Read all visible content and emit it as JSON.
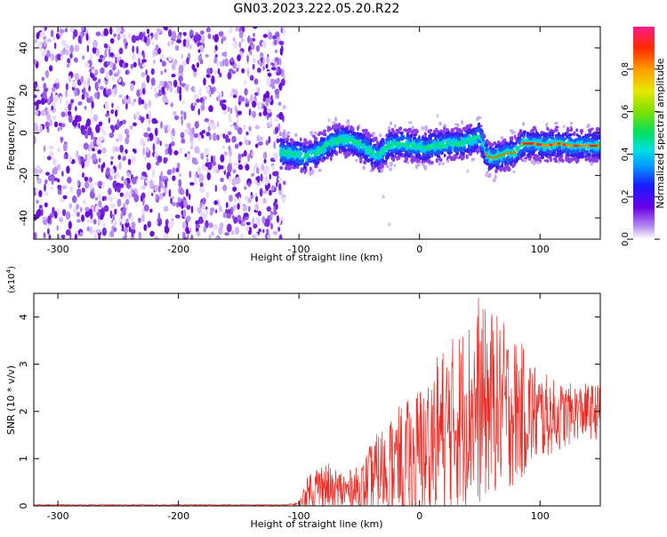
{
  "figure_title": "GN03.2023.222.05.20.R22",
  "colors": {
    "noise": "#7a2bdc",
    "signal_low": "#2a2ff0",
    "snr_line": "#e8302a"
  },
  "chart_data": [
    {
      "type": "heatmap",
      "title": "GN03.2023.222.05.20.R22",
      "xlabel": "Height of straight line (km)",
      "ylabel": "Frequency (Hz)",
      "xlim": [
        -320,
        150
      ],
      "ylim": [
        -50,
        50
      ],
      "xticks": [
        -300,
        -200,
        -100,
        0,
        100
      ],
      "yticks": [
        -40,
        -20,
        0,
        20,
        40
      ],
      "noise_region_x": [
        -320,
        -112
      ],
      "signal_ridge": {
        "x": [
          -115,
          -105,
          -95,
          -85,
          -75,
          -65,
          -55,
          -45,
          -35,
          -25,
          -15,
          -5,
          5,
          15,
          25,
          35,
          45,
          50,
          55,
          60,
          70,
          80,
          85,
          95,
          105,
          115,
          125,
          135,
          145,
          150
        ],
        "freq": [
          -9,
          -10,
          -11,
          -9,
          -5,
          -3,
          -4,
          -7,
          -11,
          -6,
          -5,
          -6,
          -7,
          -6,
          -5,
          -5,
          -3,
          -1,
          -10,
          -12,
          -10,
          -9,
          -5,
          -5,
          -6,
          -5,
          -6,
          -6,
          -6,
          -6
        ]
      },
      "colorbar": {
        "label": "Normalized spectral amplitude",
        "range": [
          0,
          1
        ],
        "ticks": [
          "0.0",
          "0.2",
          "0.4",
          "0.6",
          "0.8"
        ]
      }
    },
    {
      "type": "line",
      "xlabel": "Height of straight line (km)",
      "ylabel": "SNR (10 * v/v)",
      "y_multiplier": "(x10",
      "y_multiplier_exp": "4",
      "xlim": [
        -320,
        150
      ],
      "ylim": [
        0,
        4.5
      ],
      "xticks": [
        -300,
        -200,
        -100,
        0,
        100
      ],
      "yticks": [
        0,
        1,
        2,
        3,
        4
      ],
      "envelope": {
        "x": [
          -320,
          -110,
          -100,
          -90,
          -80,
          -70,
          -60,
          -50,
          -40,
          -30,
          -20,
          -10,
          0,
          10,
          20,
          30,
          40,
          50,
          60,
          70,
          80,
          90,
          100,
          110,
          120,
          130,
          140,
          150
        ],
        "mean": [
          0.02,
          0.02,
          0.05,
          0.35,
          0.4,
          0.35,
          0.3,
          0.35,
          0.55,
          0.75,
          0.85,
          0.95,
          1.1,
          1.4,
          1.6,
          1.8,
          2.0,
          2.1,
          2.2,
          2.1,
          2.0,
          2.0,
          1.9,
          1.9,
          1.9,
          2.0,
          2.0,
          2.0
        ],
        "amp": [
          0.01,
          0.01,
          0.05,
          0.5,
          0.55,
          0.5,
          0.45,
          0.5,
          0.8,
          1.0,
          1.2,
          1.3,
          1.5,
          1.8,
          1.8,
          1.9,
          2.0,
          2.1,
          2.0,
          1.8,
          1.6,
          1.3,
          1.0,
          0.8,
          0.7,
          0.6,
          0.6,
          0.6
        ],
        "peak_x": 49,
        "peak_y": 4.4
      }
    }
  ]
}
